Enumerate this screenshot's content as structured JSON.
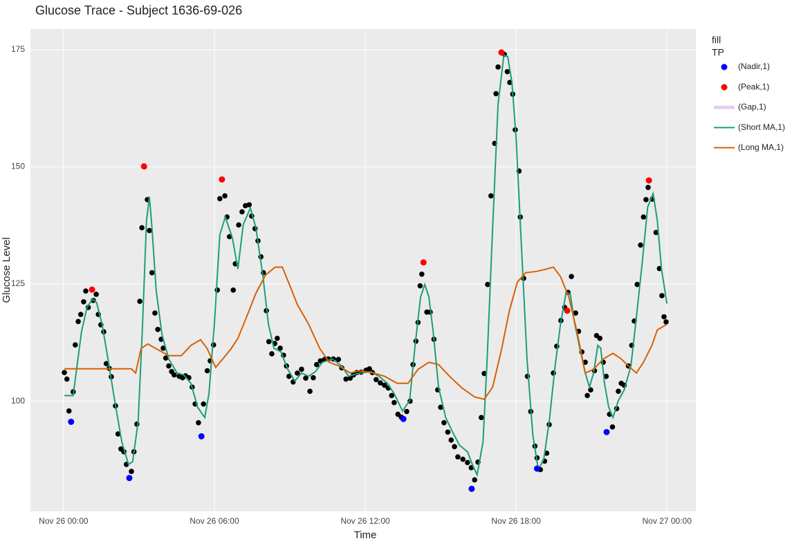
{
  "chart_data": {
    "type": "scatter",
    "title": "Glucose Trace - Subject  1636-69-026",
    "x_label": "Time",
    "y_label": "Glucose Level",
    "legend_title": [
      "fill",
      "TP"
    ],
    "grid": true,
    "legend_position": "right",
    "xlim": [
      "Nov 25 22:41",
      "Nov 27 01:09"
    ],
    "xticks": [
      "Nov 26 00:00",
      "Nov 26 06:00",
      "Nov 26 12:00",
      "Nov 26 18:00",
      "Nov 27 00:00"
    ],
    "ylim": [
      76.5,
      179.4
    ],
    "yticks": [
      100,
      125,
      150,
      175
    ],
    "series": [
      {
        "mode": "markers",
        "color": "#000000",
        "x": [
          "Nov 26 00:02",
          "Nov 26 00:08",
          "Nov 26 00:13",
          "Nov 26 00:23",
          "Nov 26 00:28",
          "Nov 26 00:35",
          "Nov 26 00:41",
          "Nov 26 00:48",
          "Nov 26 00:53",
          "Nov 26 00:59",
          "Nov 26 01:11",
          "Nov 26 01:18",
          "Nov 26 01:23",
          "Nov 26 01:29",
          "Nov 26 01:36",
          "Nov 26 01:42",
          "Nov 26 01:49",
          "Nov 26 01:54",
          "Nov 26 02:04",
          "Nov 26 02:10",
          "Nov 26 02:17",
          "Nov 26 02:24",
          "Nov 26 02:30",
          "Nov 26 02:42",
          "Nov 26 02:48",
          "Nov 26 02:55",
          "Nov 26 03:02",
          "Nov 26 03:07",
          "Nov 26 03:13",
          "Nov 26 03:20",
          "Nov 26 03:25",
          "Nov 26 03:31",
          "Nov 26 03:38",
          "Nov 26 03:45",
          "Nov 26 03:53",
          "Nov 26 03:58",
          "Nov 26 04:04",
          "Nov 26 04:11",
          "Nov 26 04:18",
          "Nov 26 04:24",
          "Nov 26 04:36",
          "Nov 26 04:44",
          "Nov 26 04:51",
          "Nov 26 04:59",
          "Nov 26 05:07",
          "Nov 26 05:14",
          "Nov 26 05:22",
          "Nov 26 05:34",
          "Nov 26 05:43",
          "Nov 26 05:50",
          "Nov 26 05:58",
          "Nov 26 06:07",
          "Nov 26 06:13",
          "Nov 26 06:25",
          "Nov 26 06:30",
          "Nov 26 06:36",
          "Nov 26 06:45",
          "Nov 26 06:50",
          "Nov 26 06:58",
          "Nov 26 07:06",
          "Nov 26 07:14",
          "Nov 26 07:23",
          "Nov 26 07:29",
          "Nov 26 07:37",
          "Nov 26 07:44",
          "Nov 26 07:51",
          "Nov 26 07:57",
          "Nov 26 08:04",
          "Nov 26 08:10",
          "Nov 26 08:17",
          "Nov 26 08:24",
          "Nov 26 08:30",
          "Nov 26 08:37",
          "Nov 26 08:45",
          "Nov 26 08:52",
          "Nov 26 08:58",
          "Nov 26 09:08",
          "Nov 26 09:18",
          "Nov 26 09:28",
          "Nov 26 09:38",
          "Nov 26 09:48",
          "Nov 26 09:56",
          "Nov 26 10:04",
          "Nov 26 10:13",
          "Nov 26 10:23",
          "Nov 26 10:32",
          "Nov 26 10:44",
          "Nov 26 10:56",
          "Nov 26 11:04",
          "Nov 26 11:14",
          "Nov 26 11:24",
          "Nov 26 11:32",
          "Nov 26 11:40",
          "Nov 26 11:50",
          "Nov 26 12:02",
          "Nov 26 12:10",
          "Nov 26 12:17",
          "Nov 26 12:26",
          "Nov 26 12:36",
          "Nov 26 12:46",
          "Nov 26 12:55",
          "Nov 26 13:03",
          "Nov 26 13:09",
          "Nov 26 13:18",
          "Nov 26 13:26",
          "Nov 26 13:39",
          "Nov 26 13:47",
          "Nov 26 13:54",
          "Nov 26 14:01",
          "Nov 26 14:06",
          "Nov 26 14:11",
          "Nov 26 14:15",
          "Nov 26 14:27",
          "Nov 26 14:35",
          "Nov 26 14:44",
          "Nov 26 14:53",
          "Nov 26 15:00",
          "Nov 26 15:08",
          "Nov 26 15:17",
          "Nov 26 15:25",
          "Nov 26 15:33",
          "Nov 26 15:41",
          "Nov 26 15:53",
          "Nov 26 16:04",
          "Nov 26 16:13",
          "Nov 26 16:21",
          "Nov 26 16:29",
          "Nov 26 16:37",
          "Nov 26 16:44",
          "Nov 26 16:52",
          "Nov 26 17:00",
          "Nov 26 17:09",
          "Nov 26 17:12",
          "Nov 26 17:17",
          "Nov 26 17:24",
          "Nov 26 17:32",
          "Nov 26 17:39",
          "Nov 26 17:45",
          "Nov 26 17:52",
          "Nov 26 17:58",
          "Nov 26 18:07",
          "Nov 26 18:10",
          "Nov 26 18:18",
          "Nov 26 18:27",
          "Nov 26 18:35",
          "Nov 26 18:45",
          "Nov 26 18:50",
          "Nov 26 18:58",
          "Nov 26 19:08",
          "Nov 26 19:13",
          "Nov 26 19:19",
          "Nov 26 19:29",
          "Nov 26 19:37",
          "Nov 26 19:47",
          "Nov 26 19:56",
          "Nov 26 20:04",
          "Nov 26 20:12",
          "Nov 26 20:22",
          "Nov 26 20:29",
          "Nov 26 20:37",
          "Nov 26 20:45",
          "Nov 26 20:50",
          "Nov 26 20:58",
          "Nov 26 21:07",
          "Nov 26 21:12",
          "Nov 26 21:20",
          "Nov 26 21:28",
          "Nov 26 21:35",
          "Nov 26 21:43",
          "Nov 26 21:50",
          "Nov 26 22:00",
          "Nov 26 22:04",
          "Nov 26 22:11",
          "Nov 26 22:18",
          "Nov 26 22:28",
          "Nov 26 22:36",
          "Nov 26 22:42",
          "Nov 26 22:49",
          "Nov 26 22:57",
          "Nov 26 23:04",
          "Nov 26 23:10",
          "Nov 26 23:15",
          "Nov 26 23:25",
          "Nov 26 23:34",
          "Nov 26 23:42",
          "Nov 26 23:48",
          "Nov 26 23:53",
          "Nov 26 23:58"
        ],
        "values": [
          106.1,
          104.7,
          97.9,
          102,
          112,
          117,
          118.5,
          121.2,
          123.5,
          120,
          121.5,
          122.8,
          118.5,
          116.3,
          114.8,
          108,
          107,
          105.2,
          99,
          93,
          89.8,
          89.2,
          86.5,
          85,
          89.2,
          95.1,
          121.3,
          137,
          150,
          143,
          136.4,
          127.4,
          118.8,
          115.3,
          113.2,
          111.3,
          109.2,
          107.5,
          106.3,
          105.6,
          105.3,
          105,
          105.4,
          105,
          103,
          99.4,
          95.4,
          99.4,
          106.5,
          108.6,
          112,
          123.7,
          143.2,
          143.8,
          139.3,
          135.1,
          123.7,
          129.3,
          137.6,
          140.4,
          141.7,
          141.9,
          139.5,
          136.8,
          134.2,
          130.8,
          127.4,
          119.3,
          112.7,
          110.1,
          112.3,
          113.4,
          111.3,
          109.8,
          107.5,
          105.3,
          104.1,
          106,
          106.8,
          104.9,
          102.1,
          105,
          107.8,
          108.6,
          108.9,
          109,
          109,
          108.9,
          107.1,
          104.7,
          104.9,
          105.6,
          106.1,
          106.2,
          106.6,
          106.9,
          106.1,
          104.6,
          103.9,
          103.4,
          102.8,
          101.2,
          99.7,
          97.2,
          96.6,
          97.8,
          100,
          107.8,
          112.8,
          116.8,
          124.6,
          127.1,
          119,
          119,
          113.2,
          102.4,
          98.7,
          95.4,
          93.4,
          91.7,
          90.3,
          88.1,
          87.6,
          86.9,
          85.8,
          83.2,
          87,
          96.5,
          105.9,
          124.9,
          143.8,
          155,
          165.6,
          171.3,
          174.4,
          174,
          170.3,
          168,
          165.5,
          157.9,
          149.1,
          139.3,
          126.2,
          105.3,
          97.8,
          90.4,
          87.9,
          85.4,
          87.2,
          88.9,
          95,
          106,
          111.7,
          117.2,
          120,
          123.2,
          126.6,
          118.8,
          114.9,
          110.5,
          108.3,
          101.2,
          102.4,
          106.5,
          114,
          113.4,
          108.3,
          105.3,
          97.2,
          94.5,
          98.4,
          102.1,
          103.8,
          103.4,
          107.5,
          111.9,
          117.1,
          124.9,
          133.3,
          139.3,
          143,
          145.6,
          143.1,
          136,
          128.3,
          122.5,
          118,
          116.9
        ]
      },
      {
        "name": "(Nadir,1)",
        "mode": "markers",
        "color": "#0000ff",
        "x": [
          "Nov 26 00:18",
          "Nov 26 02:37",
          "Nov 26 05:29",
          "Nov 26 13:31",
          "Nov 26 16:14",
          "Nov 26 18:50",
          "Nov 26 21:36"
        ],
        "values": [
          95.6,
          83.6,
          92.5,
          96.2,
          81.3,
          85.6,
          93.4
        ]
      },
      {
        "name": "(Peak,1)",
        "mode": "markers",
        "color": "#ff0000",
        "x": [
          "Nov 26 01:08",
          "Nov 26 03:12",
          "Nov 26 06:18",
          "Nov 26 14:19",
          "Nov 26 17:25",
          "Nov 26 20:02",
          "Nov 26 23:17"
        ],
        "values": [
          123.8,
          150.1,
          147.3,
          129.6,
          174.4,
          119.3,
          147.1
        ]
      },
      {
        "name": "(Gap,1)",
        "mode": "lines",
        "color": "#e5cdf2",
        "width": 5,
        "x": [],
        "values": []
      },
      {
        "name": "(Short MA,1)",
        "mode": "lines",
        "color": "#1b9e77",
        "width": 2,
        "x": [
          "Nov 26 00:02",
          "Nov 26 00:23",
          "Nov 26 00:30",
          "Nov 26 00:43",
          "Nov 26 00:56",
          "Nov 26 01:09",
          "Nov 26 01:19",
          "Nov 26 01:32",
          "Nov 26 01:46",
          "Nov 26 02:02",
          "Nov 26 02:19",
          "Nov 26 02:35",
          "Nov 26 02:45",
          "Nov 26 02:58",
          "Nov 26 03:08",
          "Nov 26 03:18",
          "Nov 26 03:25",
          "Nov 26 03:31",
          "Nov 26 03:41",
          "Nov 26 03:55",
          "Nov 26 04:11",
          "Nov 26 04:31",
          "Nov 26 04:47",
          "Nov 26 05:04",
          "Nov 26 05:20",
          "Nov 26 05:37",
          "Nov 26 05:47",
          "Nov 26 06:00",
          "Nov 26 06:13",
          "Nov 26 06:26",
          "Nov 26 06:43",
          "Nov 26 06:56",
          "Nov 26 07:09",
          "Nov 26 07:26",
          "Nov 26 07:39",
          "Nov 26 07:56",
          "Nov 26 08:09",
          "Nov 26 08:22",
          "Nov 26 08:39",
          "Nov 26 08:55",
          "Nov 26 09:12",
          "Nov 26 09:28",
          "Nov 26 09:45",
          "Nov 26 10:01",
          "Nov 26 10:18",
          "Nov 26 10:41",
          "Nov 26 11:04",
          "Nov 26 11:20",
          "Nov 26 11:47",
          "Nov 26 12:13",
          "Nov 26 12:33",
          "Nov 26 12:53",
          "Nov 26 13:09",
          "Nov 26 13:29",
          "Nov 26 13:46",
          "Nov 26 13:59",
          "Nov 26 14:12",
          "Nov 26 14:22",
          "Nov 26 14:32",
          "Nov 26 14:42",
          "Nov 26 14:55",
          "Nov 26 15:12",
          "Nov 26 15:28",
          "Nov 26 15:45",
          "Nov 26 16:04",
          "Nov 26 16:17",
          "Nov 26 16:27",
          "Nov 26 16:41",
          "Nov 26 16:51",
          "Nov 26 17:04",
          "Nov 26 17:17",
          "Nov 26 17:31",
          "Nov 26 17:40",
          "Nov 26 17:50",
          "Nov 26 18:00",
          "Nov 26 18:13",
          "Nov 26 18:26",
          "Nov 26 18:40",
          "Nov 26 18:53",
          "Nov 26 19:06",
          "Nov 26 19:19",
          "Nov 26 19:33",
          "Nov 26 19:46",
          "Nov 26 19:59",
          "Nov 26 20:09",
          "Nov 26 20:19",
          "Nov 26 20:32",
          "Nov 26 20:45",
          "Nov 26 20:55",
          "Nov 26 21:05",
          "Nov 26 21:15",
          "Nov 26 21:22",
          "Nov 26 21:31",
          "Nov 26 21:41",
          "Nov 26 21:51",
          "Nov 26 22:04",
          "Nov 26 22:18",
          "Nov 26 22:34",
          "Nov 26 22:47",
          "Nov 26 23:01",
          "Nov 26 23:14",
          "Nov 26 23:27",
          "Nov 26 23:37",
          "Nov 26 23:47",
          "Nov 27 00:00"
        ],
        "values": [
          101.2,
          101.2,
          106,
          114.9,
          120,
          121.8,
          121,
          116.4,
          109,
          100.1,
          91.3,
          86.5,
          87.1,
          95.6,
          114.9,
          138.5,
          143.6,
          137,
          123.7,
          114.2,
          109,
          106,
          105.6,
          103.8,
          98.7,
          96.5,
          101.6,
          116.4,
          135.5,
          139.3,
          134.8,
          128.2,
          137.7,
          141.2,
          137,
          126.6,
          116.4,
          111.3,
          110.5,
          106.8,
          104.3,
          106,
          105.3,
          106.3,
          108.3,
          109,
          107.5,
          105.3,
          106,
          106.3,
          105.3,
          103.8,
          101.6,
          97.9,
          100.1,
          111.9,
          122.2,
          124.9,
          122.2,
          114.9,
          103,
          96.5,
          93.5,
          90.6,
          89.2,
          86.2,
          84.3,
          91.3,
          109,
          137,
          163.5,
          173.8,
          173.5,
          168,
          156.2,
          132.6,
          109,
          92.8,
          85.4,
          87.6,
          95.6,
          107.5,
          116.4,
          123,
          123,
          117,
          111.3,
          106,
          103,
          106,
          111.9,
          111.3,
          103.8,
          98.7,
          96.5,
          100.1,
          102.4,
          107.5,
          117.9,
          129.6,
          141.4,
          144.3,
          138.5,
          128.2,
          120.8
        ]
      },
      {
        "name": "(Long MA,1)",
        "mode": "lines",
        "color": "#d95f02",
        "width": 2,
        "x": [
          "Nov 26 00:02",
          "Nov 26 02:42",
          "Nov 26 02:52",
          "Nov 26 03:05",
          "Nov 26 03:21",
          "Nov 26 03:41",
          "Nov 26 04:11",
          "Nov 26 04:41",
          "Nov 26 05:04",
          "Nov 26 05:27",
          "Nov 26 05:43",
          "Nov 26 06:03",
          "Nov 26 06:20",
          "Nov 26 06:40",
          "Nov 26 06:56",
          "Nov 26 07:16",
          "Nov 26 07:39",
          "Nov 26 08:02",
          "Nov 26 08:25",
          "Nov 26 08:42",
          "Nov 26 08:58",
          "Nov 26 09:18",
          "Nov 26 09:45",
          "Nov 26 10:11",
          "Nov 26 10:34",
          "Nov 26 10:57",
          "Nov 26 11:24",
          "Nov 26 11:47",
          "Nov 26 12:20",
          "Nov 26 12:46",
          "Nov 26 13:16",
          "Nov 26 13:42",
          "Nov 26 14:06",
          "Nov 26 14:32",
          "Nov 26 14:55",
          "Nov 26 15:21",
          "Nov 26 15:51",
          "Nov 26 16:21",
          "Nov 26 16:44",
          "Nov 26 17:04",
          "Nov 26 17:24",
          "Nov 26 17:44",
          "Nov 26 18:03",
          "Nov 26 18:23",
          "Nov 26 18:50",
          "Nov 26 19:13",
          "Nov 26 19:29",
          "Nov 26 19:46",
          "Nov 26 20:06",
          "Nov 26 20:25",
          "Nov 26 20:45",
          "Nov 26 21:05",
          "Nov 26 21:28",
          "Nov 26 21:51",
          "Nov 26 22:11",
          "Nov 26 22:28",
          "Nov 26 22:47",
          "Nov 26 23:04",
          "Nov 26 23:24",
          "Nov 26 23:37",
          "Nov 27 00:00"
        ],
        "values": [
          106.9,
          106.9,
          106,
          111.2,
          112.2,
          111.2,
          109.7,
          109.7,
          111.9,
          113.1,
          111.2,
          107.2,
          109,
          111.2,
          113.4,
          117.8,
          123,
          126.9,
          128.6,
          128.6,
          125.1,
          120.6,
          116.4,
          111.3,
          108.3,
          107.5,
          106,
          106.5,
          106,
          105.3,
          103.8,
          103.8,
          106.8,
          108.3,
          107.8,
          105.3,
          102.8,
          100.9,
          100.4,
          103,
          110.5,
          119.3,
          125.4,
          127.4,
          127.7,
          128.2,
          128.6,
          126.6,
          122.2,
          114.9,
          106,
          106.8,
          109,
          110.2,
          109,
          107.5,
          106,
          108.3,
          111.9,
          115.2,
          116.4
        ]
      }
    ]
  }
}
